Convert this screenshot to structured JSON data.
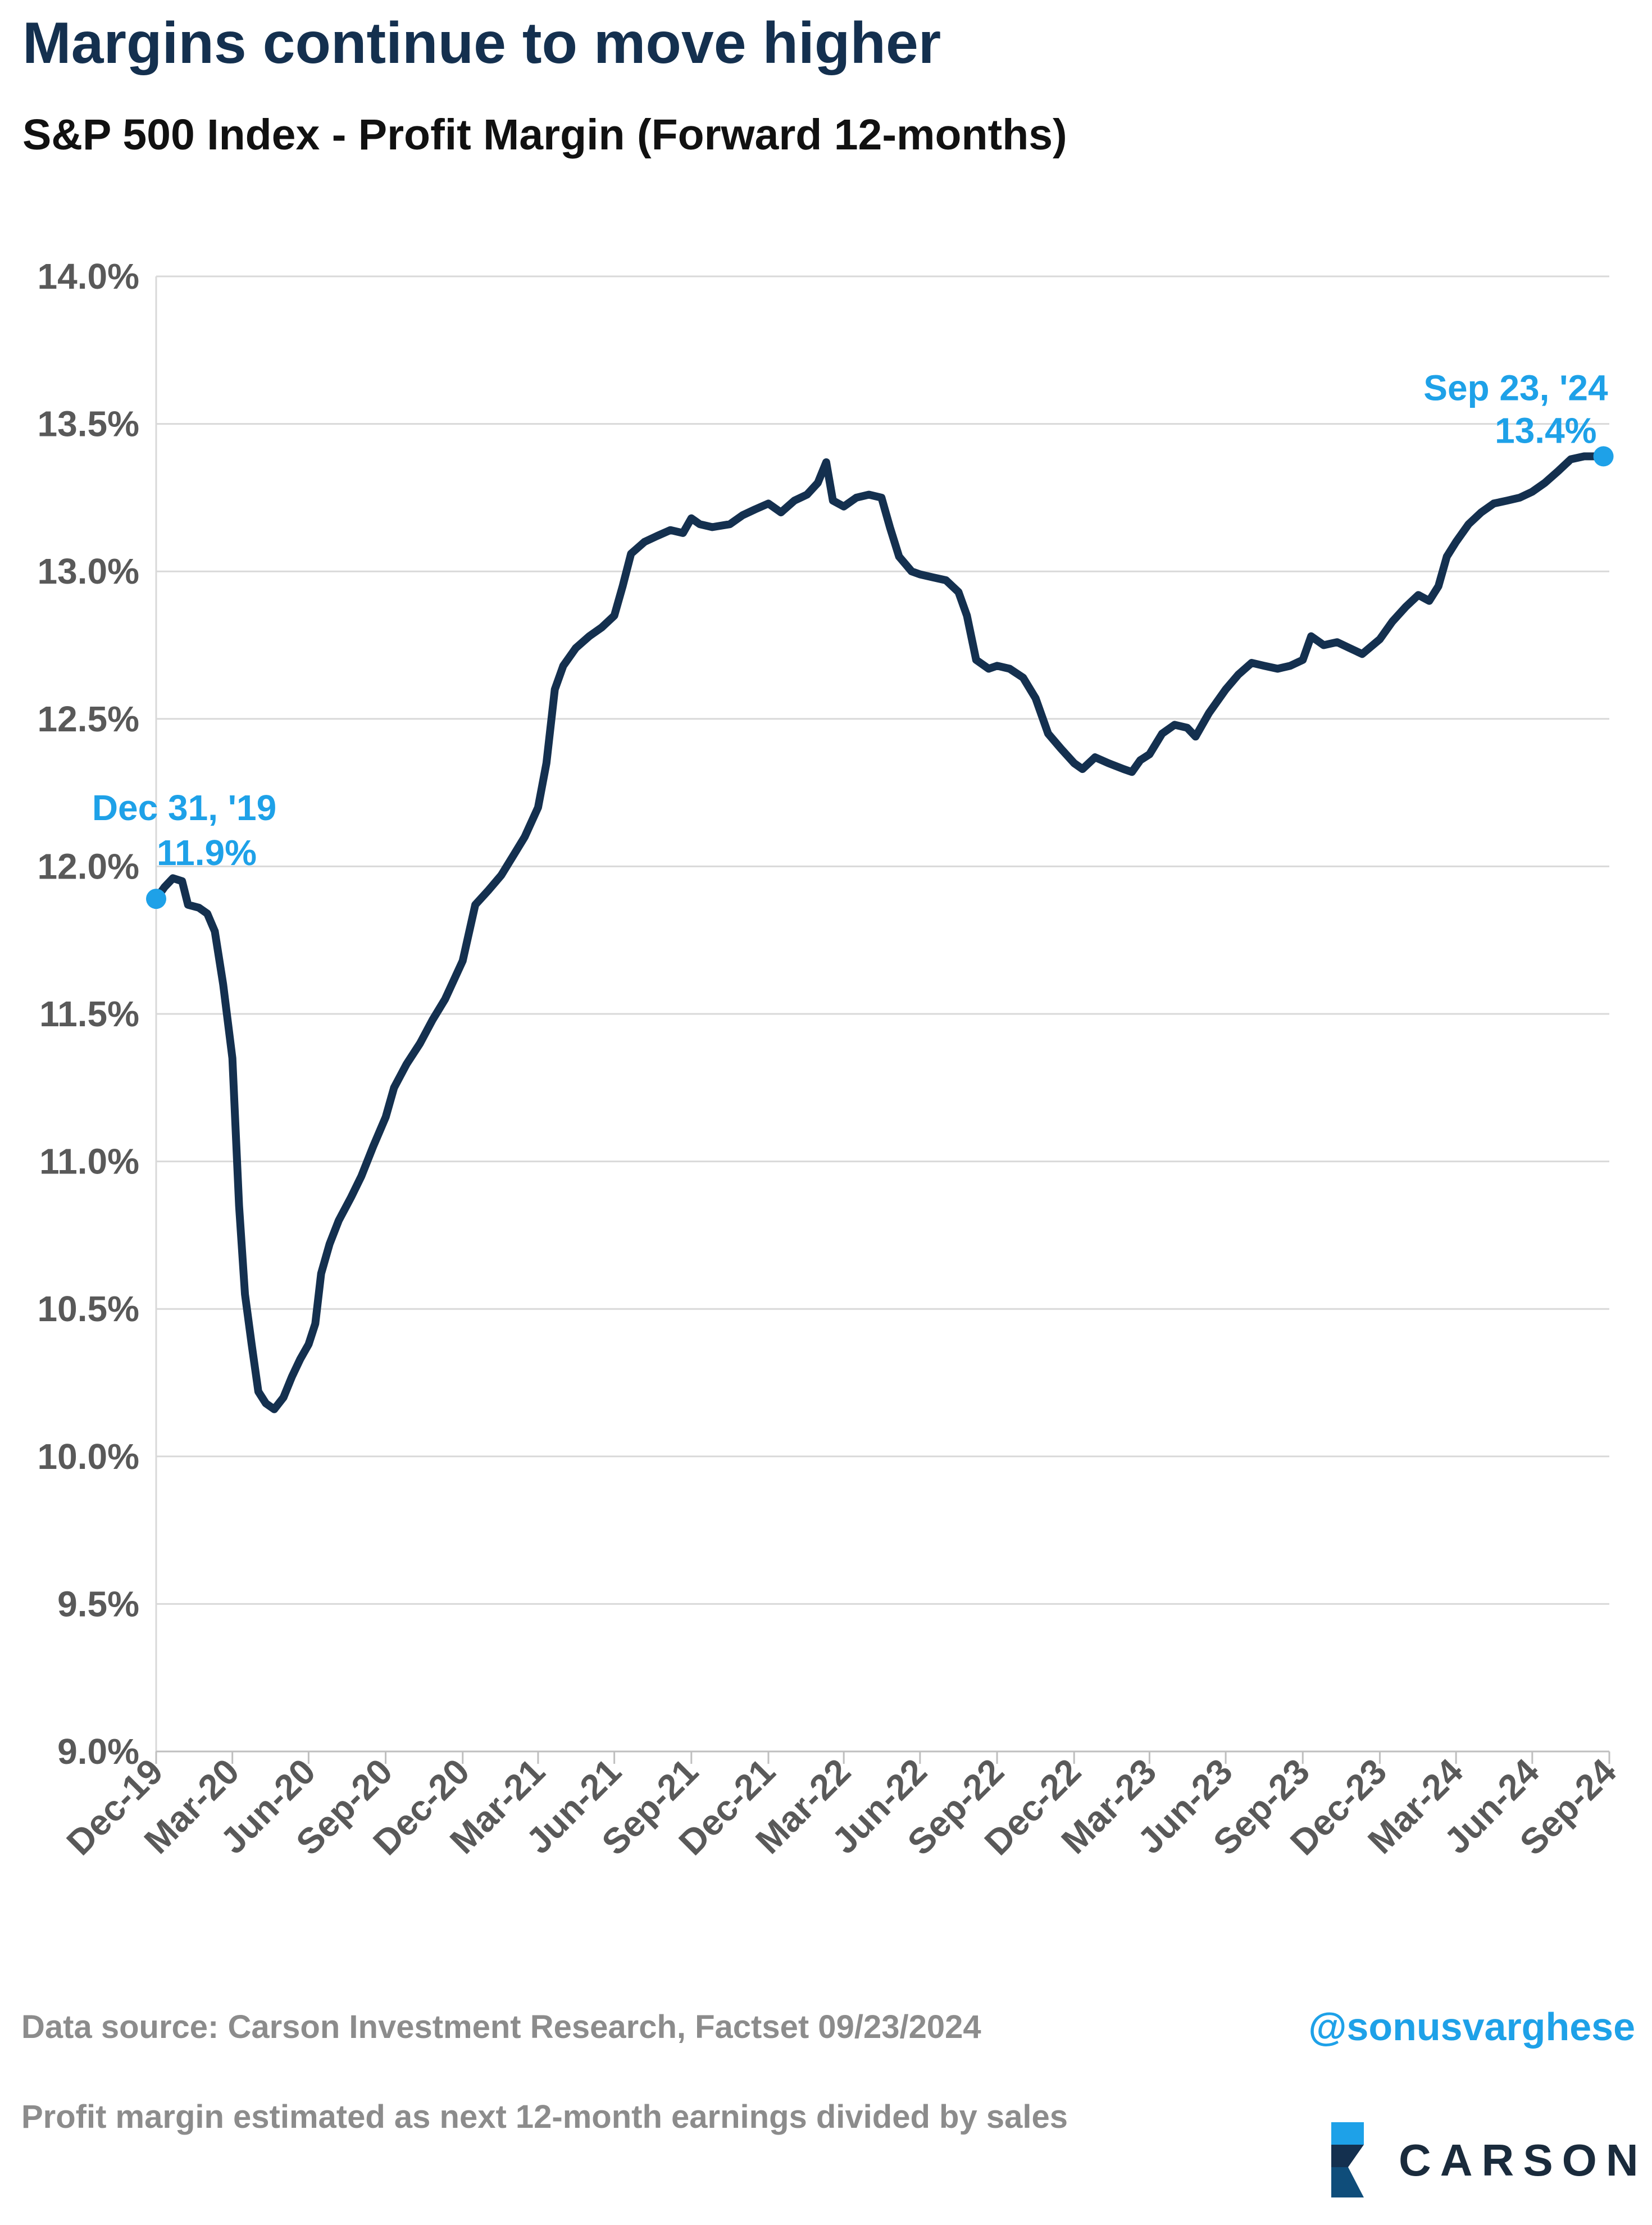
{
  "header": {
    "title": "Margins continue to move higher",
    "subtitle": "S&P 500 Index - Profit Margin (Forward 12-months)"
  },
  "footer": {
    "source": "Data source: Carson Investment Research, Factset   09/23/2024",
    "note": "Profit margin estimated as next 12-month earnings divided by sales",
    "handle": "@sonusvarghese",
    "logo_text": "CARSON"
  },
  "colors": {
    "line": "#14304f",
    "accent": "#1ea1e8",
    "grid": "#d9d9d9",
    "axis_text": "#595959"
  },
  "chart_data": {
    "type": "line",
    "title": "S&P 500 Index - Profit Margin (Forward 12-months)",
    "xlabel": "",
    "ylabel": "",
    "ylim": [
      9.0,
      14.0
    ],
    "yticks": [
      9.0,
      9.5,
      10.0,
      10.5,
      11.0,
      11.5,
      12.0,
      12.5,
      13.0,
      13.5,
      14.0
    ],
    "ytick_labels": [
      "9.0%",
      "9.5%",
      "10.0%",
      "10.5%",
      "11.0%",
      "11.5%",
      "12.0%",
      "12.5%",
      "13.0%",
      "13.5%",
      "14.0%"
    ],
    "xlim": [
      "2019-12-31",
      "2024-09-30"
    ],
    "xticks": [
      "2019-12-31",
      "2020-03-31",
      "2020-06-30",
      "2020-09-30",
      "2020-12-31",
      "2021-03-31",
      "2021-06-30",
      "2021-09-30",
      "2021-12-31",
      "2022-03-31",
      "2022-06-30",
      "2022-09-30",
      "2022-12-31",
      "2023-03-31",
      "2023-06-30",
      "2023-09-30",
      "2023-12-31",
      "2024-03-31",
      "2024-06-30",
      "2024-09-30"
    ],
    "xtick_labels": [
      "Dec-19",
      "Mar-20",
      "Jun-20",
      "Sep-20",
      "Dec-20",
      "Mar-21",
      "Jun-21",
      "Sep-21",
      "Dec-21",
      "Mar-22",
      "Jun-22",
      "Sep-22",
      "Dec-22",
      "Mar-23",
      "Jun-23",
      "Sep-23",
      "Dec-23",
      "Mar-24",
      "Jun-24",
      "Sep-24"
    ],
    "grid": true,
    "legend": "none",
    "series": [
      {
        "points": [
          [
            "2019-12-31",
            11.89
          ],
          [
            "2020-01-10",
            11.93
          ],
          [
            "2020-01-20",
            11.96
          ],
          [
            "2020-01-31",
            11.95
          ],
          [
            "2020-02-07",
            11.87
          ],
          [
            "2020-02-20",
            11.86
          ],
          [
            "2020-03-01",
            11.84
          ],
          [
            "2020-03-10",
            11.78
          ],
          [
            "2020-03-20",
            11.6
          ],
          [
            "2020-03-31",
            11.35
          ],
          [
            "2020-04-08",
            10.85
          ],
          [
            "2020-04-15",
            10.55
          ],
          [
            "2020-04-23",
            10.38
          ],
          [
            "2020-05-01",
            10.22
          ],
          [
            "2020-05-10",
            10.18
          ],
          [
            "2020-05-20",
            10.16
          ],
          [
            "2020-05-31",
            10.2
          ],
          [
            "2020-06-10",
            10.27
          ],
          [
            "2020-06-20",
            10.33
          ],
          [
            "2020-06-30",
            10.38
          ],
          [
            "2020-07-08",
            10.45
          ],
          [
            "2020-07-15",
            10.62
          ],
          [
            "2020-07-25",
            10.72
          ],
          [
            "2020-08-05",
            10.8
          ],
          [
            "2020-08-20",
            10.88
          ],
          [
            "2020-09-01",
            10.95
          ],
          [
            "2020-09-15",
            11.05
          ],
          [
            "2020-09-30",
            11.15
          ],
          [
            "2020-10-10",
            11.25
          ],
          [
            "2020-10-25",
            11.33
          ],
          [
            "2020-11-10",
            11.4
          ],
          [
            "2020-11-25",
            11.48
          ],
          [
            "2020-12-10",
            11.55
          ],
          [
            "2020-12-31",
            11.68
          ],
          [
            "2021-01-15",
            11.87
          ],
          [
            "2021-01-31",
            11.92
          ],
          [
            "2021-02-15",
            11.97
          ],
          [
            "2021-02-28",
            12.03
          ],
          [
            "2021-03-15",
            12.1
          ],
          [
            "2021-03-31",
            12.2
          ],
          [
            "2021-04-10",
            12.35
          ],
          [
            "2021-04-20",
            12.6
          ],
          [
            "2021-04-30",
            12.68
          ],
          [
            "2021-05-15",
            12.74
          ],
          [
            "2021-05-31",
            12.78
          ],
          [
            "2021-06-15",
            12.81
          ],
          [
            "2021-06-30",
            12.85
          ],
          [
            "2021-07-10",
            12.95
          ],
          [
            "2021-07-20",
            13.06
          ],
          [
            "2021-08-05",
            13.1
          ],
          [
            "2021-08-20",
            13.12
          ],
          [
            "2021-09-05",
            13.14
          ],
          [
            "2021-09-20",
            13.13
          ],
          [
            "2021-09-30",
            13.18
          ],
          [
            "2021-10-10",
            13.16
          ],
          [
            "2021-10-25",
            13.15
          ],
          [
            "2021-11-15",
            13.16
          ],
          [
            "2021-11-30",
            13.19
          ],
          [
            "2021-12-15",
            13.21
          ],
          [
            "2021-12-31",
            13.23
          ],
          [
            "2022-01-15",
            13.2
          ],
          [
            "2022-01-31",
            13.24
          ],
          [
            "2022-02-15",
            13.26
          ],
          [
            "2022-02-28",
            13.3
          ],
          [
            "2022-03-10",
            13.37
          ],
          [
            "2022-03-18",
            13.24
          ],
          [
            "2022-03-31",
            13.22
          ],
          [
            "2022-04-15",
            13.25
          ],
          [
            "2022-04-30",
            13.26
          ],
          [
            "2022-05-15",
            13.25
          ],
          [
            "2022-05-25",
            13.15
          ],
          [
            "2022-06-05",
            13.05
          ],
          [
            "2022-06-20",
            13.0
          ],
          [
            "2022-06-30",
            12.99
          ],
          [
            "2022-07-15",
            12.98
          ],
          [
            "2022-07-31",
            12.97
          ],
          [
            "2022-08-15",
            12.93
          ],
          [
            "2022-08-25",
            12.85
          ],
          [
            "2022-09-05",
            12.7
          ],
          [
            "2022-09-20",
            12.67
          ],
          [
            "2022-09-30",
            12.68
          ],
          [
            "2022-10-15",
            12.67
          ],
          [
            "2022-10-31",
            12.64
          ],
          [
            "2022-11-15",
            12.57
          ],
          [
            "2022-11-30",
            12.45
          ],
          [
            "2022-12-15",
            12.4
          ],
          [
            "2022-12-31",
            12.35
          ],
          [
            "2023-01-10",
            12.33
          ],
          [
            "2023-01-25",
            12.37
          ],
          [
            "2023-02-10",
            12.35
          ],
          [
            "2023-02-28",
            12.33
          ],
          [
            "2023-03-10",
            12.32
          ],
          [
            "2023-03-20",
            12.36
          ],
          [
            "2023-03-31",
            12.38
          ],
          [
            "2023-04-15",
            12.45
          ],
          [
            "2023-04-30",
            12.48
          ],
          [
            "2023-05-15",
            12.47
          ],
          [
            "2023-05-25",
            12.44
          ],
          [
            "2023-06-10",
            12.52
          ],
          [
            "2023-06-30",
            12.6
          ],
          [
            "2023-07-15",
            12.65
          ],
          [
            "2023-07-31",
            12.69
          ],
          [
            "2023-08-15",
            12.68
          ],
          [
            "2023-08-31",
            12.67
          ],
          [
            "2023-09-15",
            12.68
          ],
          [
            "2023-09-30",
            12.7
          ],
          [
            "2023-10-10",
            12.78
          ],
          [
            "2023-10-25",
            12.75
          ],
          [
            "2023-11-10",
            12.76
          ],
          [
            "2023-11-25",
            12.74
          ],
          [
            "2023-12-10",
            12.72
          ],
          [
            "2023-12-31",
            12.77
          ],
          [
            "2024-01-15",
            12.83
          ],
          [
            "2024-01-31",
            12.88
          ],
          [
            "2024-02-15",
            12.92
          ],
          [
            "2024-02-28",
            12.9
          ],
          [
            "2024-03-10",
            12.95
          ],
          [
            "2024-03-20",
            13.05
          ],
          [
            "2024-03-31",
            13.1
          ],
          [
            "2024-04-15",
            13.16
          ],
          [
            "2024-04-30",
            13.2
          ],
          [
            "2024-05-15",
            13.23
          ],
          [
            "2024-05-31",
            13.24
          ],
          [
            "2024-06-15",
            13.25
          ],
          [
            "2024-06-30",
            13.27
          ],
          [
            "2024-07-15",
            13.3
          ],
          [
            "2024-07-31",
            13.34
          ],
          [
            "2024-08-15",
            13.38
          ],
          [
            "2024-08-31",
            13.39
          ],
          [
            "2024-09-10",
            13.39
          ],
          [
            "2024-09-23",
            13.39
          ]
        ]
      }
    ],
    "annotations": [
      {
        "date": "2019-12-31",
        "value": 11.89,
        "label_date": "Dec 31, '19",
        "label_value": "11.9%"
      },
      {
        "date": "2024-09-23",
        "value": 13.39,
        "label_date": "Sep 23, '24",
        "label_value": "13.4%"
      }
    ]
  }
}
